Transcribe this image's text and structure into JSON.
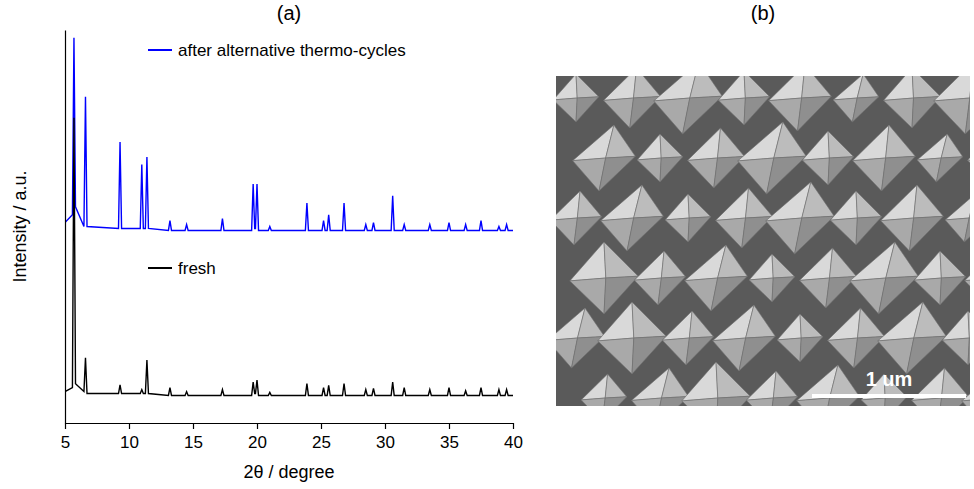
{
  "chart_data": {
    "type": "line",
    "title": "(a)",
    "x_label": "2θ / degree",
    "y_label": "Intensity / a.u.",
    "x": [
      5,
      5.58,
      5.7,
      5.82,
      6.48,
      6.6,
      6.72,
      9.18,
      9.3,
      9.42,
      10.88,
      11.0,
      11.12,
      11.28,
      11.4,
      11.52,
      13.08,
      13.2,
      13.32,
      14.38,
      14.5,
      14.62,
      17.18,
      17.3,
      17.42,
      19.58,
      19.7,
      19.82,
      19.88,
      20.0,
      20.12,
      20.88,
      21.0,
      21.12,
      23.78,
      23.9,
      24.02,
      25.08,
      25.2,
      25.32,
      25.48,
      25.6,
      25.72,
      26.68,
      26.8,
      26.92,
      28.38,
      28.5,
      28.62,
      28.98,
      29.1,
      29.22,
      30.48,
      30.6,
      30.72,
      31.38,
      31.5,
      31.62,
      33.38,
      33.5,
      33.62,
      34.88,
      35.0,
      35.12,
      36.18,
      36.3,
      36.42,
      37.38,
      37.5,
      37.62,
      38.78,
      38.9,
      39.02,
      39.38,
      39.5,
      39.62,
      40
    ],
    "series": [
      {
        "name": "after alternative thermo-cycles",
        "color": "#0000ff",
        "values": [
          51,
          53,
          98,
          55,
          50,
          83,
          50,
          49.5,
          71.5,
          49.5,
          49.5,
          65.8,
          49.5,
          49.5,
          67.7,
          49.5,
          49,
          51.5,
          49,
          49,
          50.5,
          49,
          49,
          52,
          49,
          49,
          60.8,
          49.5,
          49.5,
          60.8,
          49,
          49,
          50,
          49,
          49,
          56,
          49,
          49,
          51.5,
          49,
          49,
          53,
          49,
          49,
          56,
          49,
          49,
          50.5,
          49,
          49,
          51,
          49,
          49,
          57.8,
          49,
          49,
          50.5,
          49,
          49,
          50.5,
          49,
          49,
          51,
          49,
          49,
          50.5,
          49,
          49,
          51.5,
          49,
          49,
          50,
          49,
          49,
          50.5,
          49,
          49
        ]
      },
      {
        "name": "fresh",
        "color": "#000000",
        "values": [
          8,
          9,
          77.7,
          10,
          8,
          16.6,
          7.5,
          7.5,
          9.7,
          7.5,
          7.5,
          8.5,
          7.5,
          7.5,
          16,
          7.5,
          7,
          9,
          7,
          7,
          8,
          7,
          7,
          8.5,
          7,
          7,
          10.4,
          7.5,
          7.5,
          10.9,
          7,
          7,
          7.8,
          7,
          7,
          10,
          7,
          7,
          9,
          7,
          7,
          9.6,
          7,
          7,
          10,
          7,
          7,
          8.5,
          7,
          7,
          8.8,
          7,
          7,
          10.4,
          7,
          7,
          9,
          7,
          7,
          8.5,
          7,
          7,
          9,
          7,
          7,
          8.2,
          7,
          7,
          9,
          7,
          7,
          8.5,
          7,
          7,
          8.5,
          7,
          7
        ]
      }
    ],
    "xlim": [
      5,
      40
    ],
    "xticks": [
      5,
      10,
      15,
      20,
      25,
      30,
      35,
      40
    ],
    "ylim": [
      0,
      100
    ],
    "yticks": [],
    "tick_labels": "x",
    "legend": "left",
    "grid": false
  },
  "image_panel": {
    "title": "(b)",
    "scale_bar_label": "1 um"
  }
}
